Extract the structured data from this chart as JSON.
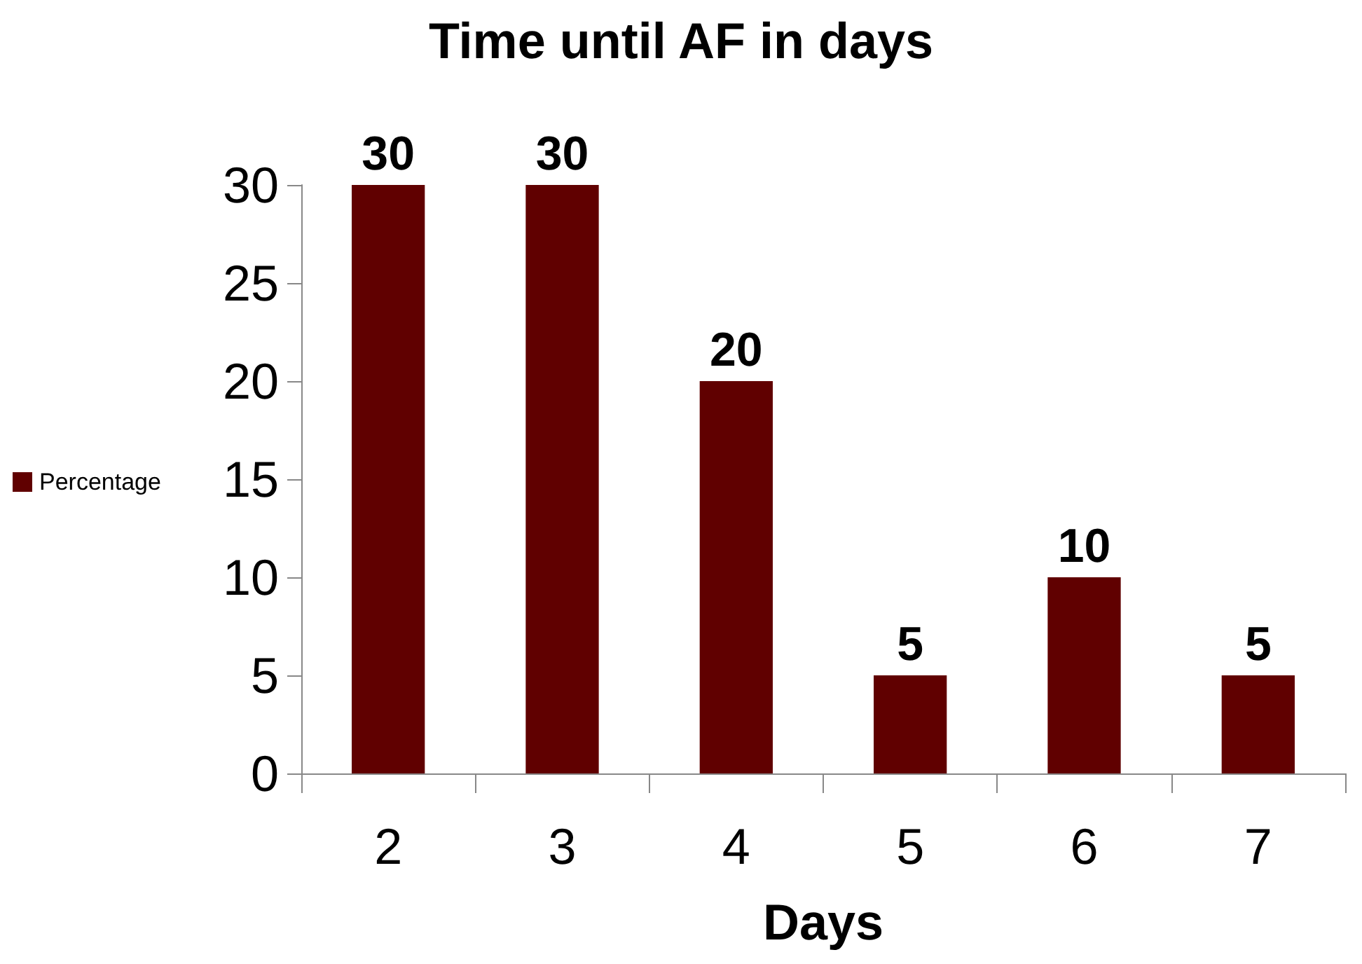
{
  "chart_data": {
    "type": "bar",
    "title": "Time until AF in days",
    "xlabel": "Days",
    "categories": [
      "2",
      "3",
      "4",
      "5",
      "6",
      "7"
    ],
    "series": [
      {
        "name": "Percentage",
        "color": "#600000",
        "values": [
          30,
          30,
          20,
          5,
          10,
          5
        ]
      }
    ],
    "ylim": [
      0,
      30
    ],
    "yticks": [
      0,
      5,
      10,
      15,
      20,
      25,
      30
    ],
    "data_labels": true,
    "grid": false,
    "legend": "left"
  }
}
